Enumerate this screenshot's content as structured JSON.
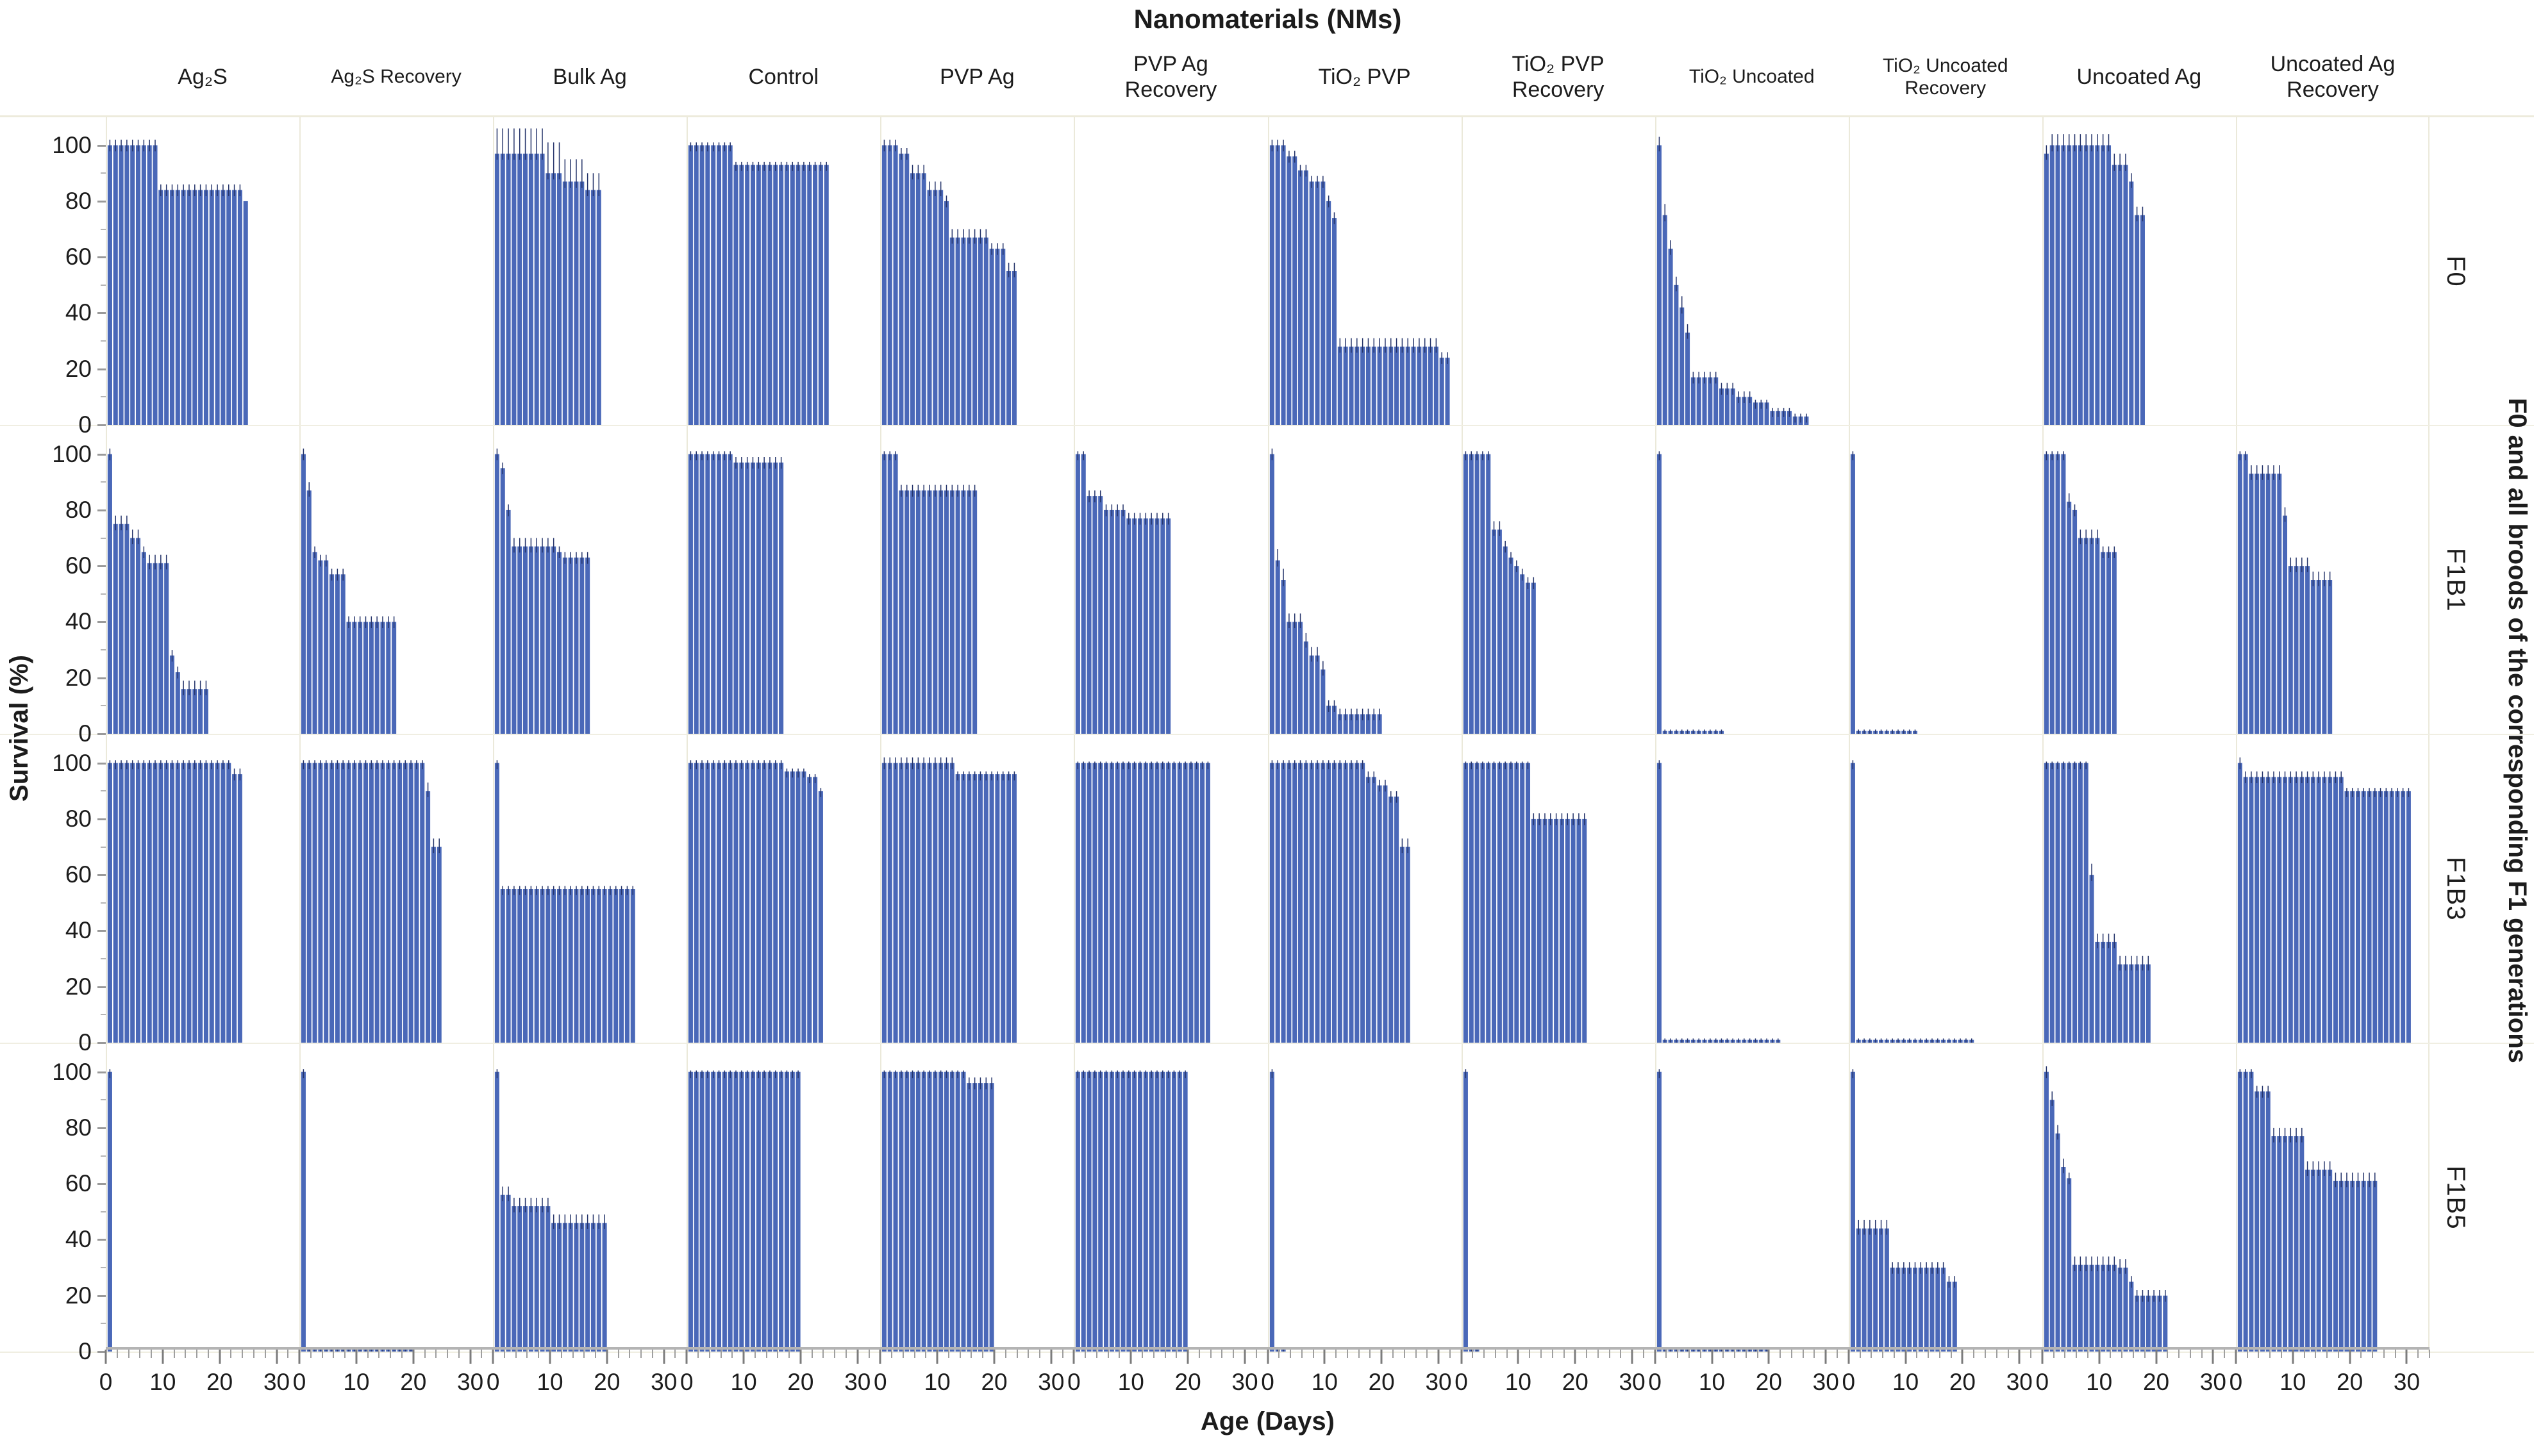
{
  "title": "Nanomaterials (NMs)",
  "x_axis_label": "Age (Days)",
  "y_axis_label": "Survival (%)",
  "right_axis_label": "F0 and all broods of the corresponding F1 generations",
  "colors": {
    "bar": "#4a68b8",
    "error_whisker": "#25346a",
    "axis_text": "#1c1c1c"
  },
  "chart_data": {
    "type": "bar",
    "description": "Faceted daily survival (%) bar curves with error whiskers; columns are nanomaterial treatments, rows are generations/broods.",
    "xlim": [
      0,
      34
    ],
    "ylim": [
      0,
      110
    ],
    "x_ticks": [
      0,
      10,
      20,
      30
    ],
    "y_ticks": [
      0,
      20,
      40,
      60,
      80,
      100
    ],
    "x_minor_step": 2,
    "y_minor_step": 10,
    "segment_format": "[start_day, end_day, survival_pct, error_pct]",
    "columns": [
      {
        "label": "Ag₂S",
        "lines": [
          "Ag₂S"
        ]
      },
      {
        "label": "Ag₂S Recovery",
        "lines": [
          "Ag₂S Recovery"
        ]
      },
      {
        "label": "Bulk Ag",
        "lines": [
          "Bulk Ag"
        ]
      },
      {
        "label": "Control",
        "lines": [
          "Control"
        ]
      },
      {
        "label": "PVP Ag",
        "lines": [
          "PVP Ag"
        ]
      },
      {
        "label": "PVP Ag Recovery",
        "lines": [
          "PVP Ag",
          "Recovery"
        ]
      },
      {
        "label": "TiO₂ PVP",
        "lines": [
          "TiO₂ PVP"
        ]
      },
      {
        "label": "TiO₂ PVP Recovery",
        "lines": [
          "TiO₂ PVP",
          "Recovery"
        ]
      },
      {
        "label": "TiO₂ Uncoated",
        "lines": [
          "TiO₂ Uncoated"
        ]
      },
      {
        "label": "TiO₂ Uncoated Recovery",
        "lines": [
          "TiO₂ Uncoated",
          "Recovery"
        ]
      },
      {
        "label": "Uncoated Ag",
        "lines": [
          "Uncoated Ag"
        ]
      },
      {
        "label": "Uncoated Ag Recovery",
        "lines": [
          "Uncoated Ag",
          "Recovery"
        ]
      }
    ],
    "rows": [
      "F0",
      "F1B1",
      "F1B3",
      "F1B5"
    ],
    "panels": [
      [
        [
          [
            0,
            9,
            100,
            2
          ],
          [
            9,
            24,
            84,
            2
          ],
          [
            24,
            25,
            80,
            0
          ]
        ],
        [],
        [
          [
            0,
            9,
            97,
            9
          ],
          [
            9,
            12,
            90,
            11
          ],
          [
            12,
            16,
            87,
            8
          ],
          [
            16,
            19,
            84,
            6
          ]
        ],
        [
          [
            0,
            8,
            100,
            1
          ],
          [
            8,
            25,
            93,
            1
          ]
        ],
        [
          [
            0,
            3,
            100,
            2
          ],
          [
            3,
            5,
            97,
            2
          ],
          [
            5,
            8,
            90,
            3
          ],
          [
            8,
            11,
            84,
            3
          ],
          [
            11,
            12,
            80,
            2
          ],
          [
            12,
            19,
            67,
            3
          ],
          [
            19,
            22,
            63,
            2
          ],
          [
            22,
            24,
            55,
            3
          ]
        ],
        [],
        [
          [
            0,
            3,
            100,
            2
          ],
          [
            3,
            5,
            96,
            2
          ],
          [
            5,
            7,
            91,
            2
          ],
          [
            7,
            10,
            87,
            2
          ],
          [
            10,
            11,
            80,
            2
          ],
          [
            11,
            12,
            74,
            2
          ],
          [
            12,
            30,
            28,
            3
          ],
          [
            30,
            32,
            24,
            2
          ]
        ],
        [],
        [
          [
            0,
            1,
            100,
            3
          ],
          [
            1,
            2,
            75,
            4
          ],
          [
            2,
            3,
            63,
            3
          ],
          [
            3,
            4,
            50,
            3
          ],
          [
            4,
            5,
            42,
            4
          ],
          [
            5,
            6,
            33,
            3
          ],
          [
            6,
            11,
            17,
            2
          ],
          [
            11,
            14,
            13,
            2
          ],
          [
            14,
            17,
            10,
            2
          ],
          [
            17,
            20,
            8,
            1
          ],
          [
            20,
            24,
            5,
            1
          ],
          [
            24,
            27,
            3,
            1
          ]
        ],
        [],
        [
          [
            0,
            1,
            97,
            3
          ],
          [
            1,
            12,
            100,
            4
          ],
          [
            12,
            15,
            93,
            4
          ],
          [
            15,
            16,
            87,
            3
          ],
          [
            16,
            18,
            75,
            3
          ]
        ],
        []
      ],
      [
        [
          [
            0,
            1,
            100,
            2
          ],
          [
            1,
            4,
            75,
            3
          ],
          [
            4,
            6,
            70,
            3
          ],
          [
            6,
            7,
            65,
            2
          ],
          [
            7,
            11,
            61,
            3
          ],
          [
            11,
            12,
            28,
            2
          ],
          [
            12,
            13,
            22,
            2
          ],
          [
            13,
            18,
            16,
            3
          ]
        ],
        [
          [
            0,
            1,
            100,
            2
          ],
          [
            1,
            2,
            87,
            3
          ],
          [
            2,
            3,
            65,
            2
          ],
          [
            3,
            5,
            62,
            2
          ],
          [
            5,
            8,
            57,
            2
          ],
          [
            8,
            17,
            40,
            2
          ]
        ],
        [
          [
            0,
            1,
            100,
            2
          ],
          [
            1,
            2,
            95,
            2
          ],
          [
            2,
            3,
            80,
            2
          ],
          [
            3,
            11,
            67,
            3
          ],
          [
            11,
            12,
            65,
            2
          ],
          [
            12,
            17,
            63,
            2
          ]
        ],
        [
          [
            0,
            8,
            100,
            1
          ],
          [
            8,
            17,
            97,
            2
          ]
        ],
        [
          [
            0,
            3,
            100,
            1
          ],
          [
            3,
            17,
            87,
            2
          ]
        ],
        [
          [
            0,
            2,
            100,
            1
          ],
          [
            2,
            5,
            85,
            2
          ],
          [
            5,
            9,
            80,
            2
          ],
          [
            9,
            17,
            77,
            2
          ]
        ],
        [
          [
            0,
            1,
            100,
            2
          ],
          [
            1,
            2,
            62,
            4
          ],
          [
            2,
            3,
            55,
            4
          ],
          [
            3,
            6,
            40,
            3
          ],
          [
            6,
            7,
            33,
            3
          ],
          [
            7,
            9,
            28,
            3
          ],
          [
            9,
            10,
            23,
            3
          ],
          [
            10,
            12,
            10,
            2
          ],
          [
            12,
            20,
            7,
            2
          ]
        ],
        [
          [
            0,
            5,
            100,
            1
          ],
          [
            5,
            7,
            73,
            3
          ],
          [
            7,
            8,
            67,
            2
          ],
          [
            8,
            9,
            63,
            2
          ],
          [
            9,
            10,
            60,
            2
          ],
          [
            10,
            11,
            57,
            2
          ],
          [
            11,
            13,
            54,
            2
          ]
        ],
        [
          [
            0,
            1,
            100,
            1
          ],
          [
            1,
            12,
            1,
            0.5
          ]
        ],
        [
          [
            0,
            1,
            100,
            1
          ],
          [
            1,
            12,
            1,
            0.5
          ]
        ],
        [
          [
            0,
            4,
            100,
            1
          ],
          [
            4,
            5,
            83,
            3
          ],
          [
            5,
            6,
            80,
            2
          ],
          [
            6,
            10,
            70,
            3
          ],
          [
            10,
            13,
            65,
            2
          ]
        ],
        [
          [
            0,
            2,
            100,
            1
          ],
          [
            2,
            8,
            93,
            3
          ],
          [
            8,
            9,
            78,
            3
          ],
          [
            9,
            13,
            60,
            3
          ],
          [
            13,
            17,
            55,
            3
          ]
        ]
      ],
      [
        [
          [
            0,
            22,
            100,
            1
          ],
          [
            22,
            24,
            96,
            2
          ]
        ],
        [
          [
            0,
            22,
            100,
            1
          ],
          [
            22,
            23,
            90,
            3
          ],
          [
            23,
            25,
            70,
            3
          ]
        ],
        [
          [
            0,
            1,
            100,
            1
          ],
          [
            1,
            25,
            55,
            1
          ]
        ],
        [
          [
            0,
            17,
            100,
            1
          ],
          [
            17,
            21,
            97,
            1
          ],
          [
            21,
            23,
            95,
            1
          ],
          [
            23,
            24,
            90,
            1
          ]
        ],
        [
          [
            0,
            13,
            100,
            2
          ],
          [
            13,
            24,
            96,
            1
          ]
        ],
        [
          [
            0,
            24,
            100,
            0.5
          ]
        ],
        [
          [
            0,
            17,
            100,
            1
          ],
          [
            17,
            19,
            95,
            2
          ],
          [
            19,
            21,
            92,
            2
          ],
          [
            21,
            23,
            88,
            2
          ],
          [
            23,
            25,
            70,
            3
          ]
        ],
        [
          [
            0,
            12,
            100,
            0.5
          ],
          [
            12,
            22,
            80,
            2
          ]
        ],
        [
          [
            0,
            1,
            100,
            1
          ],
          [
            1,
            22,
            1,
            0.5
          ]
        ],
        [
          [
            0,
            1,
            100,
            1
          ],
          [
            1,
            22,
            1,
            0.5
          ]
        ],
        [
          [
            0,
            8,
            100,
            0.5
          ],
          [
            8,
            9,
            60,
            4
          ],
          [
            9,
            13,
            36,
            3
          ],
          [
            13,
            19,
            28,
            3
          ]
        ],
        [
          [
            0,
            1,
            100,
            2
          ],
          [
            1,
            19,
            95,
            2
          ],
          [
            19,
            31,
            90,
            1
          ]
        ]
      ],
      [
        [
          [
            0,
            1,
            100,
            1
          ]
        ],
        [
          [
            0,
            1,
            100,
            1
          ],
          [
            1,
            20,
            1,
            0.5
          ]
        ],
        [
          [
            0,
            1,
            100,
            1
          ],
          [
            1,
            3,
            56,
            3
          ],
          [
            3,
            10,
            52,
            3
          ],
          [
            10,
            20,
            46,
            3
          ]
        ],
        [
          [
            0,
            20,
            100,
            0.5
          ]
        ],
        [
          [
            0,
            15,
            100,
            0.5
          ],
          [
            15,
            20,
            96,
            2
          ]
        ],
        [
          [
            0,
            20,
            100,
            0.5
          ]
        ],
        [
          [
            0,
            1,
            100,
            1
          ],
          [
            1,
            3,
            1,
            0.5
          ]
        ],
        [
          [
            0,
            1,
            100,
            1
          ],
          [
            1,
            3,
            1,
            0.5
          ]
        ],
        [
          [
            0,
            1,
            100,
            1
          ],
          [
            1,
            20,
            1,
            0.5
          ]
        ],
        [
          [
            0,
            1,
            100,
            1
          ],
          [
            1,
            7,
            44,
            3
          ],
          [
            7,
            17,
            30,
            2
          ],
          [
            17,
            19,
            25,
            2
          ]
        ],
        [
          [
            0,
            1,
            100,
            2
          ],
          [
            1,
            2,
            90,
            3
          ],
          [
            2,
            3,
            78,
            3
          ],
          [
            3,
            4,
            66,
            3
          ],
          [
            4,
            5,
            62,
            2
          ],
          [
            5,
            13,
            31,
            3
          ],
          [
            13,
            15,
            30,
            3
          ],
          [
            15,
            16,
            25,
            2
          ],
          [
            16,
            22,
            20,
            2
          ]
        ],
        [
          [
            0,
            3,
            100,
            1
          ],
          [
            3,
            6,
            93,
            2
          ],
          [
            6,
            12,
            77,
            3
          ],
          [
            12,
            17,
            65,
            3
          ],
          [
            17,
            25,
            61,
            3
          ]
        ]
      ]
    ]
  }
}
